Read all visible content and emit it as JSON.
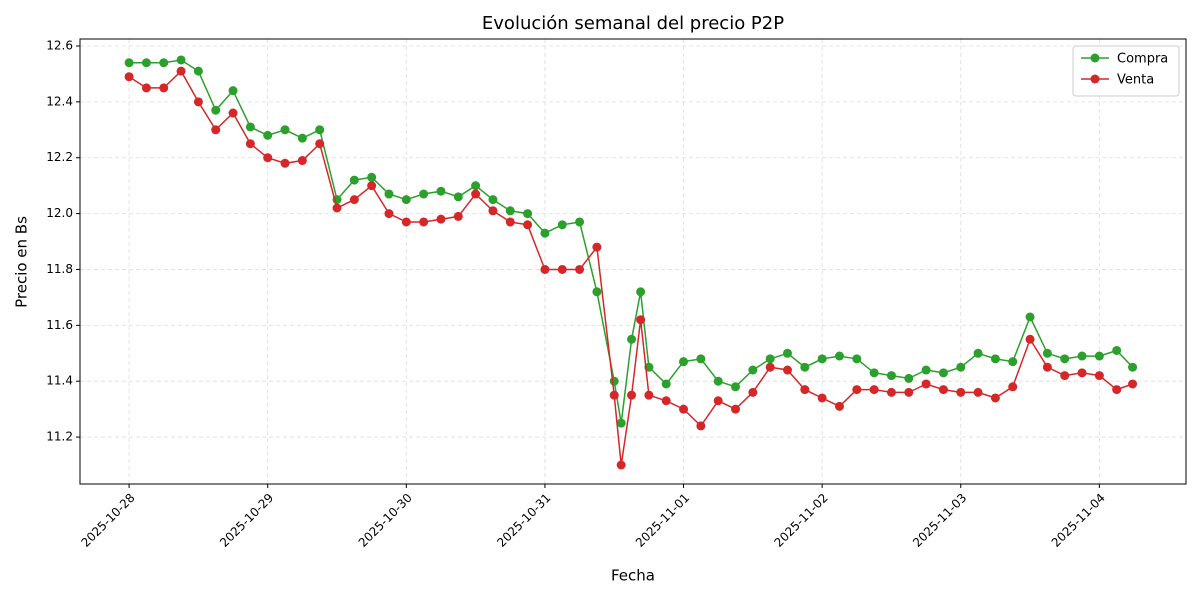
{
  "chart_data": {
    "type": "line",
    "title": "Evolución semanal del precio P2P",
    "x_label": "Fecha",
    "y_label": "Precio en Bs",
    "x": [
      "2025-10-28 00:00",
      "2025-10-28 03:00",
      "2025-10-28 06:00",
      "2025-10-28 09:00",
      "2025-10-28 12:00",
      "2025-10-28 15:00",
      "2025-10-28 18:00",
      "2025-10-28 21:00",
      "2025-10-29 00:00",
      "2025-10-29 03:00",
      "2025-10-29 06:00",
      "2025-10-29 09:00",
      "2025-10-29 12:00",
      "2025-10-29 15:00",
      "2025-10-29 18:00",
      "2025-10-29 21:00",
      "2025-10-30 00:00",
      "2025-10-30 03:00",
      "2025-10-30 06:00",
      "2025-10-30 09:00",
      "2025-10-30 12:00",
      "2025-10-30 15:00",
      "2025-10-30 18:00",
      "2025-10-30 21:00",
      "2025-10-31 00:00",
      "2025-10-31 03:00",
      "2025-10-31 06:00",
      "2025-10-31 09:00",
      "2025-10-31 12:00",
      "2025-10-31 13:12",
      "2025-10-31 15:00",
      "2025-10-31 16:34",
      "2025-10-31 18:00",
      "2025-10-31 21:00",
      "2025-11-01 00:00",
      "2025-11-01 03:00",
      "2025-11-01 06:00",
      "2025-11-01 09:00",
      "2025-11-01 12:00",
      "2025-11-01 15:00",
      "2025-11-01 18:00",
      "2025-11-01 21:00",
      "2025-11-02 00:00",
      "2025-11-02 03:00",
      "2025-11-02 06:00",
      "2025-11-02 09:00",
      "2025-11-02 12:00",
      "2025-11-02 15:00",
      "2025-11-02 18:00",
      "2025-11-02 21:00",
      "2025-11-03 00:00",
      "2025-11-03 03:00",
      "2025-11-03 06:00",
      "2025-11-03 09:00",
      "2025-11-03 12:00",
      "2025-11-03 15:00",
      "2025-11-03 18:00",
      "2025-11-03 21:00",
      "2025-11-04 00:00",
      "2025-11-04 03:00",
      "2025-11-04 05:45"
    ],
    "series": [
      {
        "name": "Compra",
        "color": "#2ca02c",
        "values": [
          12.54,
          12.54,
          12.54,
          12.55,
          12.51,
          12.37,
          12.44,
          12.31,
          12.28,
          12.3,
          12.27,
          12.3,
          12.05,
          12.12,
          12.13,
          12.07,
          12.05,
          12.07,
          12.08,
          12.06,
          12.1,
          12.05,
          12.01,
          12.0,
          11.93,
          11.96,
          11.97,
          11.72,
          11.4,
          11.25,
          11.55,
          11.72,
          11.45,
          11.39,
          11.47,
          11.48,
          11.4,
          11.38,
          11.44,
          11.48,
          11.5,
          11.45,
          11.48,
          11.49,
          11.48,
          11.43,
          11.42,
          11.41,
          11.44,
          11.43,
          11.45,
          11.5,
          11.48,
          11.47,
          11.63,
          11.5,
          11.48,
          11.49,
          11.49,
          11.51,
          11.45
        ]
      },
      {
        "name": "Venta",
        "color": "#d62728",
        "values": [
          12.49,
          12.45,
          12.45,
          12.51,
          12.4,
          12.3,
          12.36,
          12.25,
          12.2,
          12.18,
          12.19,
          12.25,
          12.02,
          12.05,
          12.1,
          12.0,
          11.97,
          11.97,
          11.98,
          11.99,
          12.07,
          12.01,
          11.97,
          11.96,
          11.8,
          11.8,
          11.8,
          11.88,
          11.35,
          11.1,
          11.35,
          11.62,
          11.35,
          11.33,
          11.3,
          11.24,
          11.33,
          11.3,
          11.36,
          11.45,
          11.44,
          11.37,
          11.34,
          11.31,
          11.37,
          11.37,
          11.36,
          11.36,
          11.39,
          11.37,
          11.36,
          11.36,
          11.34,
          11.38,
          11.55,
          11.45,
          11.42,
          11.43,
          11.42,
          11.37,
          11.39
        ]
      }
    ],
    "xlim": [
      "2025-10-27 15:30",
      "2025-11-04 15:00"
    ],
    "xticks": [
      "2025-10-28",
      "2025-10-29",
      "2025-10-30",
      "2025-10-31",
      "2025-11-01",
      "2025-11-02",
      "2025-11-03",
      "2025-11-04"
    ],
    "ylim": [
      11.032,
      12.625
    ],
    "yticks": [
      11.2,
      11.4,
      11.6,
      11.8,
      {
        "value": 12,
        "label": "12.0"
      },
      12.2,
      12.4,
      12.6
    ],
    "grid": true,
    "legend": "upper right"
  }
}
